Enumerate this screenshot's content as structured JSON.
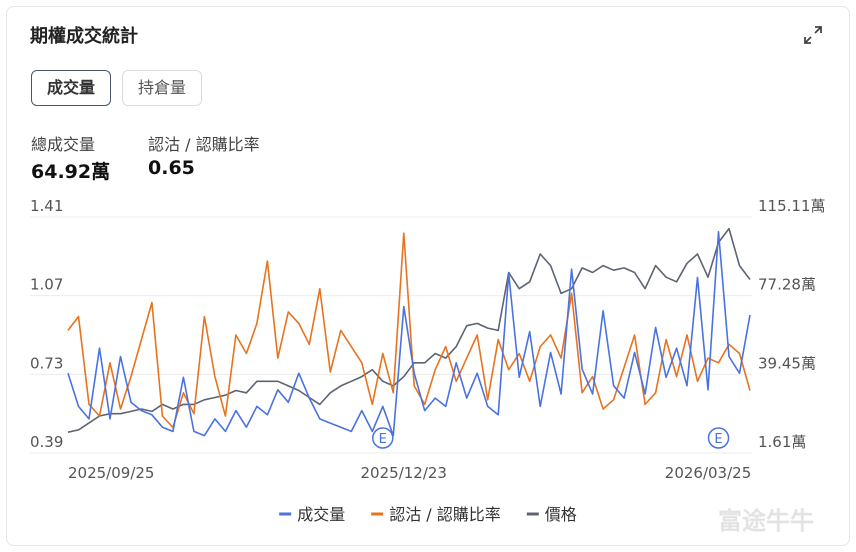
{
  "header": {
    "title": "期權成交統計"
  },
  "tabs": [
    "成交量",
    "持倉量"
  ],
  "stats": [
    {
      "label": "總成交量",
      "value": "64.92萬"
    },
    {
      "label": "認沽 / 認購比率",
      "value": "0.65"
    }
  ],
  "watermark": "富途牛牛",
  "chart_data": {
    "type": "line",
    "categories": [
      "2025/09/25",
      null,
      null,
      null,
      null,
      null,
      null,
      null,
      null,
      null,
      null,
      null,
      null,
      null,
      null,
      null,
      null,
      null,
      null,
      null,
      null,
      null,
      null,
      null,
      null,
      null,
      null,
      null,
      null,
      null,
      null,
      null,
      "2025/12/23",
      null,
      null,
      null,
      null,
      null,
      null,
      null,
      null,
      null,
      null,
      null,
      null,
      null,
      null,
      null,
      null,
      null,
      null,
      null,
      null,
      null,
      null,
      null,
      null,
      null,
      null,
      null,
      null,
      "2026/03/25",
      null,
      null,
      null,
      null
    ],
    "series": [
      {
        "name": "成交量",
        "color": "#4a72e0",
        "axis": "y2",
        "values": [
          40,
          24,
          18,
          52,
          18,
          48,
          26,
          22,
          20,
          14,
          12,
          38,
          12,
          10,
          18,
          12,
          22,
          14,
          24,
          20,
          32,
          26,
          40,
          28,
          18,
          16,
          14,
          12,
          22,
          12,
          24,
          10,
          72,
          40,
          22,
          28,
          24,
          45,
          28,
          40,
          24,
          20,
          88,
          38,
          60,
          24,
          50,
          30,
          90,
          42,
          30,
          70,
          34,
          28,
          50,
          30,
          62,
          38,
          52,
          34,
          86,
          32,
          108,
          48,
          40,
          68
        ]
      },
      {
        "name": "認沽 / 認購比率",
        "color": "#e8731f",
        "values": [
          0.92,
          0.98,
          0.6,
          0.55,
          0.78,
          0.58,
          0.72,
          0.88,
          1.04,
          0.55,
          0.5,
          0.65,
          0.56,
          0.98,
          0.72,
          0.55,
          0.9,
          0.82,
          0.95,
          1.22,
          0.8,
          1.0,
          0.95,
          0.86,
          1.1,
          0.74,
          0.92,
          0.85,
          0.78,
          0.6,
          0.82,
          0.65,
          1.34,
          0.68,
          0.6,
          0.75,
          0.85,
          0.7,
          0.8,
          0.9,
          0.62,
          0.88,
          0.75,
          0.82,
          0.7,
          0.85,
          0.9,
          0.8,
          1.08,
          0.65,
          0.72,
          0.58,
          0.62,
          0.76,
          0.9,
          0.6,
          0.65,
          0.88,
          0.72,
          0.9,
          0.7,
          0.8,
          0.78,
          0.86,
          0.82,
          0.66
        ]
      },
      {
        "name": "價格",
        "color": "#5c6473",
        "values": [
          0.48,
          0.49,
          0.52,
          0.55,
          0.56,
          0.56,
          0.57,
          0.58,
          0.57,
          0.6,
          0.58,
          0.6,
          0.6,
          0.62,
          0.63,
          0.64,
          0.66,
          0.65,
          0.7,
          0.7,
          0.7,
          0.68,
          0.66,
          0.63,
          0.6,
          0.65,
          0.68,
          0.7,
          0.72,
          0.75,
          0.7,
          0.68,
          0.72,
          0.78,
          0.78,
          0.82,
          0.8,
          0.85,
          0.94,
          0.95,
          0.93,
          0.92,
          1.17,
          1.1,
          1.13,
          1.25,
          1.2,
          1.08,
          1.1,
          1.19,
          1.17,
          1.2,
          1.18,
          1.19,
          1.17,
          1.1,
          1.2,
          1.15,
          1.13,
          1.21,
          1.25,
          1.15,
          1.3,
          1.36,
          1.2,
          1.14
        ]
      }
    ],
    "ylim": [
      0.39,
      1.41
    ],
    "yticks": [
      0.39,
      0.73,
      1.07,
      1.41
    ],
    "y2lim": [
      1.61,
      115.11
    ],
    "y2ticks": [
      {
        "value": 1.61,
        "label": "1.61萬"
      },
      {
        "value": 39.45,
        "label": "39.45萬"
      },
      {
        "value": 77.28,
        "label": "77.28萬"
      },
      {
        "value": 115.11,
        "label": "115.11萬"
      }
    ],
    "grid": true,
    "annotations": [
      "E",
      "E"
    ]
  }
}
